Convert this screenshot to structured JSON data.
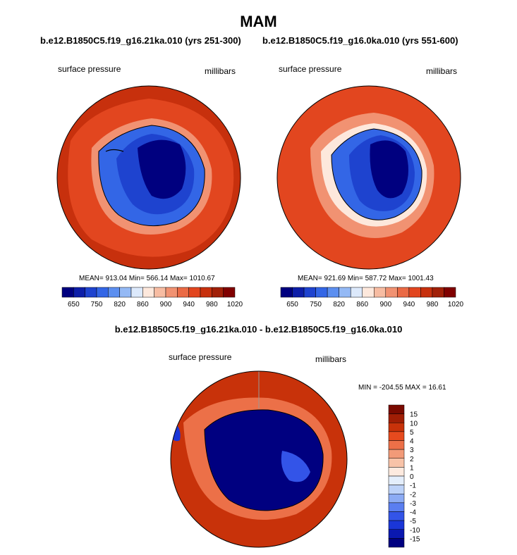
{
  "figure": {
    "title": "MAM",
    "left_title": "b.e12.B1850C5.f19_g16.21ka.010 (yrs 251-300)",
    "right_title": "b.e12.B1850C5.f19_g16.0ka.010 (yrs 551-600)",
    "diff_title": "b.e12.B1850C5.f19_g16.21ka.010 - b.e12.B1850C5.f19_g16.0ka.010"
  },
  "panels": {
    "left": {
      "field_label": "surface pressure",
      "units": "millibars",
      "stats": "MEAN= 913.04  Min= 566.14  Max= 1010.67"
    },
    "right": {
      "field_label": "surface pressure",
      "units": "millibars",
      "stats": "MEAN= 921.69  Min= 587.72  Max= 1001.43"
    },
    "diff": {
      "field_label": "surface pressure",
      "units": "millibars",
      "stats": "MIN = -204.55 MAX =  16.61"
    }
  },
  "colors": {
    "abs_palette": [
      "#00007f",
      "#0d1ea8",
      "#1e43cf",
      "#3366e6",
      "#5c8ff0",
      "#94b9f5",
      "#dce9fb",
      "#fde8dc",
      "#f7bca2",
      "#f19272",
      "#ea6a45",
      "#e2461f",
      "#c7300d",
      "#a12008",
      "#800000"
    ],
    "diff_palette": [
      "#000080",
      "#0a18b0",
      "#1a36d8",
      "#3354e8",
      "#5a7ef0",
      "#8cabf4",
      "#bdd2f8",
      "#e4eefb",
      "#fdeadf",
      "#f8c3a8",
      "#f29a78",
      "#ec7048",
      "#e64a1e",
      "#c8320a",
      "#a01e05",
      "#7a0a00"
    ],
    "land_mask": "#000000"
  },
  "chart_data": [
    {
      "type": "heatmap",
      "title": "b.e12.B1850C5.f19_g16.21ka.010 (yrs 251-300)",
      "variable": "surface pressure",
      "units": "millibars",
      "projection": "south polar stereographic",
      "colorbar_ticks": [
        "650",
        "750",
        "820",
        "860",
        "900",
        "940",
        "980",
        "1020"
      ],
      "mean": 913.04,
      "min": 566.14,
      "max": 1010.67
    },
    {
      "type": "heatmap",
      "title": "b.e12.B1850C5.f19_g16.0ka.010 (yrs 551-600)",
      "variable": "surface pressure",
      "units": "millibars",
      "projection": "south polar stereographic",
      "colorbar_ticks": [
        "650",
        "750",
        "820",
        "860",
        "900",
        "940",
        "980",
        "1020"
      ],
      "mean": 921.69,
      "min": 587.72,
      "max": 1001.43
    },
    {
      "type": "heatmap",
      "title": "b.e12.B1850C5.f19_g16.21ka.010 - b.e12.B1850C5.f19_g16.0ka.010",
      "variable": "surface pressure",
      "units": "millibars",
      "projection": "south polar stereographic",
      "colorbar_ticks": [
        "15",
        "10",
        "5",
        "4",
        "3",
        "2",
        "1",
        "0",
        "-1",
        "-2",
        "-3",
        "-4",
        "-5",
        "-10",
        "-15"
      ],
      "min": -204.55,
      "max": 16.61
    }
  ]
}
